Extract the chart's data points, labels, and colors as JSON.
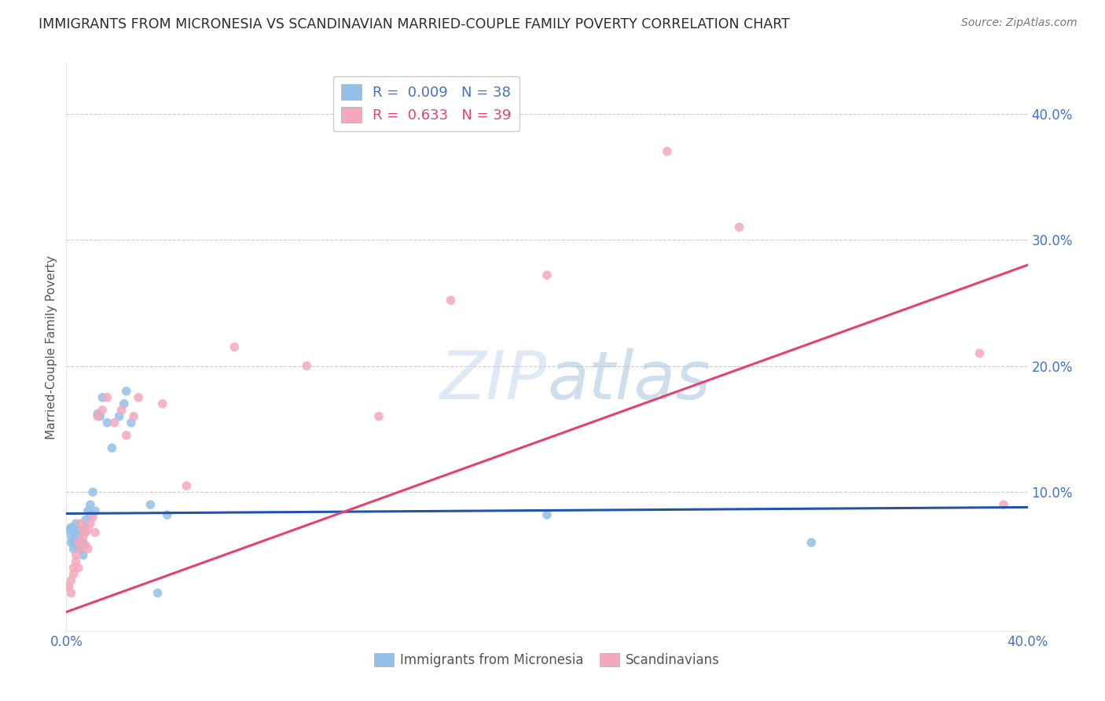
{
  "title": "IMMIGRANTS FROM MICRONESIA VS SCANDINAVIAN MARRIED-COUPLE FAMILY POVERTY CORRELATION CHART",
  "source": "Source: ZipAtlas.com",
  "ylabel": "Married-Couple Family Poverty",
  "xlim": [
    0.0,
    0.4
  ],
  "ylim": [
    -0.01,
    0.44
  ],
  "ytick_vals": [
    0.0,
    0.1,
    0.2,
    0.3,
    0.4
  ],
  "xtick_vals": [
    0.0,
    0.1,
    0.2,
    0.3,
    0.4
  ],
  "legend_r1": "0.009",
  "legend_n1": "38",
  "legend_r2": "0.633",
  "legend_n2": "39",
  "blue_color": "#92C0E8",
  "pink_color": "#F5A8BB",
  "blue_line_color": "#2255AA",
  "pink_line_color": "#E84070",
  "blue_x": [
    0.001,
    0.002,
    0.002,
    0.002,
    0.003,
    0.003,
    0.003,
    0.004,
    0.004,
    0.005,
    0.005,
    0.005,
    0.006,
    0.006,
    0.007,
    0.007,
    0.007,
    0.008,
    0.008,
    0.009,
    0.01,
    0.01,
    0.011,
    0.012,
    0.013,
    0.014,
    0.015,
    0.017,
    0.019,
    0.022,
    0.024,
    0.025,
    0.027,
    0.035,
    0.038,
    0.042,
    0.2,
    0.31
  ],
  "blue_y": [
    0.07,
    0.065,
    0.072,
    0.06,
    0.068,
    0.062,
    0.055,
    0.075,
    0.06,
    0.07,
    0.065,
    0.055,
    0.06,
    0.055,
    0.068,
    0.06,
    0.05,
    0.072,
    0.078,
    0.085,
    0.082,
    0.09,
    0.1,
    0.085,
    0.162,
    0.16,
    0.175,
    0.155,
    0.135,
    0.16,
    0.17,
    0.18,
    0.155,
    0.09,
    0.02,
    0.082,
    0.082,
    0.06
  ],
  "pink_x": [
    0.001,
    0.002,
    0.002,
    0.003,
    0.003,
    0.004,
    0.004,
    0.005,
    0.005,
    0.006,
    0.006,
    0.007,
    0.007,
    0.008,
    0.008,
    0.009,
    0.009,
    0.01,
    0.011,
    0.012,
    0.013,
    0.015,
    0.017,
    0.02,
    0.023,
    0.025,
    0.028,
    0.03,
    0.04,
    0.05,
    0.07,
    0.1,
    0.13,
    0.16,
    0.2,
    0.25,
    0.28,
    0.38,
    0.39
  ],
  "pink_y": [
    0.025,
    0.03,
    0.02,
    0.04,
    0.035,
    0.045,
    0.05,
    0.04,
    0.06,
    0.055,
    0.075,
    0.065,
    0.07,
    0.068,
    0.058,
    0.055,
    0.07,
    0.075,
    0.08,
    0.068,
    0.16,
    0.165,
    0.175,
    0.155,
    0.165,
    0.145,
    0.16,
    0.175,
    0.17,
    0.105,
    0.215,
    0.2,
    0.16,
    0.252,
    0.272,
    0.37,
    0.31,
    0.21,
    0.09
  ],
  "blue_trendline_x": [
    0.0,
    0.4
  ],
  "blue_trendline_y": [
    0.083,
    0.088
  ],
  "pink_trendline_x": [
    0.0,
    0.4
  ],
  "pink_trendline_y": [
    0.005,
    0.28
  ],
  "grid_color": "#CCCCCC",
  "background_color": "#FFFFFF",
  "title_color": "#2C2C2C",
  "axis_label_color": "#555555",
  "tick_color": "#4472C4"
}
